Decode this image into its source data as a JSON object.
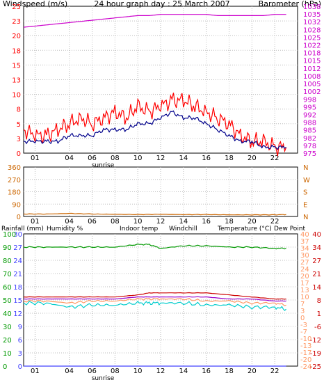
{
  "title": "24 hour graph day : 25 March 2007",
  "colors": {
    "grid": "#bdbdbd",
    "wind": "#ff0000",
    "gust_dark": "#00008b",
    "baro": "#cc00cc",
    "dir": "#cc6600",
    "rain": "#4040ff",
    "humidity": "#009900",
    "indoor": "#ff9966",
    "windchill": "#00cccc",
    "temp": "#cc0000",
    "dew": "#9900cc",
    "temp_axis": "#cc3300"
  },
  "x_ticks": [
    "01",
    "04",
    "06",
    "08",
    "10",
    "12",
    "14",
    "16",
    "18",
    "20",
    "22"
  ],
  "sunrise_label": "sunrise",
  "panel1": {
    "left_label": "Windspeed (m/s)",
    "right_label": "Barometer (hPa)",
    "left_ticks": [
      "25",
      "23",
      "20",
      "18",
      "15",
      "13",
      "10",
      "8",
      "5",
      "3",
      "0"
    ],
    "right_ticks": [
      "1038",
      "1035",
      "1032",
      "1028",
      "1025",
      "1022",
      "1018",
      "1015",
      "1012",
      "1008",
      "1005",
      "1002",
      "998",
      "995",
      "992",
      "988",
      "985",
      "982",
      "978",
      "975"
    ]
  },
  "panel2": {
    "left_ticks": [
      "360",
      "270",
      "180",
      "90",
      "0"
    ],
    "right_ticks": [
      "N",
      "W",
      "S",
      "E",
      "N"
    ]
  },
  "panel3": {
    "labels": {
      "rain": "Rainfall (mm)",
      "humidity": "Humidity %",
      "indoor": "Indoor temp",
      "windchill": "Windchill",
      "temp": "Temperature (°C)",
      "dew": "Dew Point"
    },
    "rain_ticks": [
      "30",
      "27",
      "24",
      "21",
      "18",
      "15",
      "12",
      "9",
      "6",
      "3",
      "0"
    ],
    "hum_ticks": [
      "100",
      "90",
      "80",
      "70",
      "60",
      "50",
      "40",
      "30",
      "20",
      "10",
      "0"
    ],
    "temp_ticks1": [
      "40",
      "37",
      "34",
      "30",
      "27",
      "24",
      "20",
      "17",
      "13",
      "10",
      "7",
      "3",
      "0",
      "-3",
      "-7",
      "-10",
      "-13",
      "-17",
      "-20",
      "-24"
    ],
    "temp_ticks2": [
      "40",
      "34",
      "27",
      "21",
      "14",
      "8",
      "1",
      "-6",
      "-12",
      "-19",
      "-25"
    ]
  },
  "chart_data": [
    {
      "type": "line",
      "title": "24 hour graph day : 25 March 2007",
      "ylabel": "Windspeed (m/s)",
      "ylim": [
        0,
        25
      ],
      "y2label": "Barometer (hPa)",
      "y2lim": [
        975,
        1038
      ],
      "x": [
        0,
        1,
        2,
        3,
        4,
        5,
        6,
        7,
        8,
        9,
        10,
        11,
        12,
        13,
        14,
        15,
        16,
        17,
        18,
        19,
        20,
        21,
        22,
        23
      ],
      "series": [
        {
          "values": [
            4,
            3,
            3,
            4,
            5,
            6,
            5,
            6,
            7,
            6,
            8,
            7,
            8,
            9,
            9,
            8,
            7,
            6,
            5,
            3,
            2,
            2,
            1,
            1
          ]
        },
        {
          "values": [
            2,
            2,
            2,
            2,
            3,
            3,
            3,
            4,
            4,
            4,
            5,
            5,
            6,
            7,
            6,
            6,
            5,
            4,
            3,
            2,
            2,
            1,
            1,
            1
          ]
        },
        {
          "values": [
            1029,
            1029.5,
            1030,
            1030.5,
            1031,
            1031.5,
            1032,
            1032.5,
            1033,
            1033.5,
            1034,
            1034,
            1034.5,
            1034.5,
            1034.5,
            1034.5,
            1034.5,
            1034,
            1034,
            1034,
            1034,
            1034,
            1034.5,
            1034.5
          ]
        }
      ]
    },
    {
      "type": "line",
      "ylim": [
        0,
        360
      ],
      "x": [
        0,
        2,
        4,
        6,
        8,
        10,
        12,
        14,
        16,
        18,
        20,
        22,
        23
      ],
      "series": [
        {
          "values": [
            18,
            18,
            22,
            18,
            16,
            14,
            16,
            14,
            14,
            12,
            12,
            12,
            14
          ]
        }
      ]
    },
    {
      "type": "line",
      "ylim": [
        0,
        100
      ],
      "x": [
        0,
        2,
        4,
        6,
        8,
        10,
        11,
        12,
        14,
        16,
        18,
        20,
        22,
        23
      ],
      "series": [
        {
          "values": [
            90,
            90,
            90,
            90,
            90,
            92,
            92,
            89,
            91,
            91,
            90,
            90,
            89,
            89
          ]
        },
        {
          "values": [
            0,
            0,
            0,
            0,
            0,
            0,
            0,
            0,
            0,
            0,
            0,
            0,
            0,
            0
          ]
        },
        {
          "values": [
            7,
            7,
            6,
            7,
            7,
            8,
            8,
            8,
            8,
            7,
            7,
            6,
            6,
            5
          ]
        },
        {
          "values": [
            6,
            6,
            4,
            5,
            5,
            6,
            6,
            6,
            6,
            5,
            5,
            4,
            4,
            3
          ]
        },
        {
          "values": [
            9,
            9,
            9,
            9,
            9,
            10,
            11,
            11,
            11,
            11,
            10,
            9,
            8,
            8
          ]
        },
        {
          "values": [
            8,
            8,
            8,
            8,
            8,
            9,
            9,
            9,
            9,
            9,
            8,
            8,
            7,
            7
          ]
        }
      ]
    }
  ]
}
